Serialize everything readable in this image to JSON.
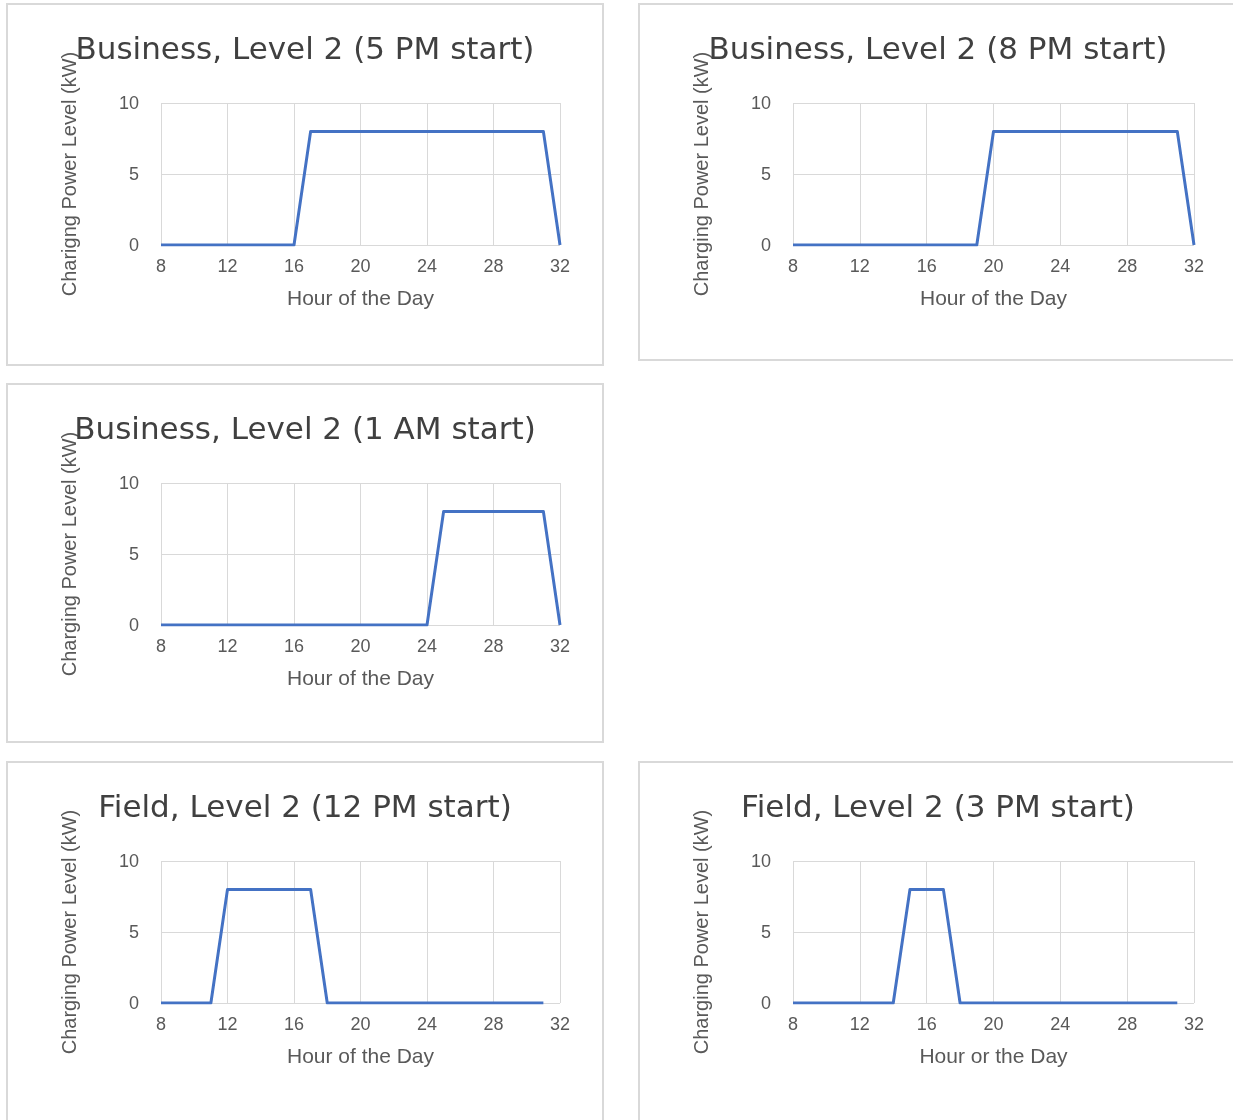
{
  "chart_data": [
    {
      "type": "line",
      "title": "Business, Level 2 (5 PM start)",
      "xlabel": "Hour of the Day",
      "ylabel": "Charigng Power Level (kW)",
      "x": [
        8,
        16,
        17,
        31,
        32
      ],
      "values": [
        0,
        0,
        8,
        8,
        0
      ],
      "color": "#4472c4",
      "xlim": [
        8,
        32
      ],
      "xticks": [
        8,
        12,
        16,
        20,
        24,
        28,
        32
      ],
      "ylim": [
        0,
        10
      ],
      "yticks": [
        0,
        5,
        10
      ],
      "grid": true
    },
    {
      "type": "line",
      "title": "Business, Level 2 (8 PM start)",
      "xlabel": "Hour of the Day",
      "ylabel": "Charging Power Level (kW)",
      "x": [
        8,
        19,
        20,
        31,
        32
      ],
      "values": [
        0,
        0,
        8,
        8,
        0
      ],
      "color": "#4472c4",
      "xlim": [
        8,
        32
      ],
      "xticks": [
        8,
        12,
        16,
        20,
        24,
        28,
        32
      ],
      "ylim": [
        0,
        10
      ],
      "yticks": [
        0,
        5,
        10
      ],
      "grid": true
    },
    {
      "type": "line",
      "title": "Business, Level 2 (1 AM start)",
      "xlabel": "Hour of the Day",
      "ylabel": "Charging Power Level (kW)",
      "x": [
        8,
        24,
        25,
        31,
        32
      ],
      "values": [
        0,
        0,
        8,
        8,
        0
      ],
      "color": "#4472c4",
      "xlim": [
        8,
        32
      ],
      "xticks": [
        8,
        12,
        16,
        20,
        24,
        28,
        32
      ],
      "ylim": [
        0,
        10
      ],
      "yticks": [
        0,
        5,
        10
      ],
      "grid": true
    },
    {
      "type": "line",
      "title": "Field, Level 2 (12 PM start)",
      "xlabel": "Hour of the Day",
      "ylabel": "Charging Power Level (kW)",
      "x": [
        8,
        11,
        12,
        17,
        18,
        31
      ],
      "values": [
        0,
        0,
        8,
        8,
        0,
        0
      ],
      "color": "#4472c4",
      "xlim": [
        8,
        32
      ],
      "xticks": [
        8,
        12,
        16,
        20,
        24,
        28,
        32
      ],
      "ylim": [
        0,
        10
      ],
      "yticks": [
        0,
        5,
        10
      ],
      "grid": true
    },
    {
      "type": "line",
      "title": "Field, Level 2 (3 PM start)",
      "xlabel": "Hour or the Day",
      "ylabel": "Charging Power Level (kW)",
      "x": [
        8,
        14,
        15,
        17,
        18,
        31
      ],
      "values": [
        0,
        0,
        8,
        8,
        0,
        0
      ],
      "color": "#4472c4",
      "xlim": [
        8,
        32
      ],
      "xticks": [
        8,
        12,
        16,
        20,
        24,
        28,
        32
      ],
      "ylim": [
        0,
        10
      ],
      "yticks": [
        0,
        5,
        10
      ],
      "grid": true
    }
  ]
}
